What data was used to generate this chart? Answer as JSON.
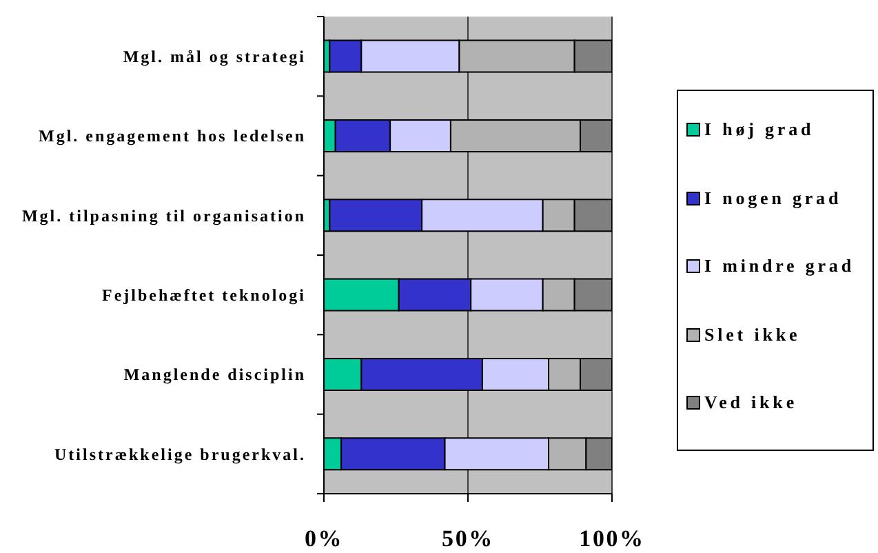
{
  "chart_data": {
    "type": "bar",
    "orientation": "horizontal",
    "stacked": true,
    "categories": [
      "Mgl. mål og strategi",
      "Mgl. engagement hos ledelsen",
      "Mgl. tilpasning til organisation",
      "Fejlbehæftet teknologi",
      "Manglende disciplin",
      "Utilstrækkelige brugerkval."
    ],
    "series": [
      {
        "name": "I høj grad",
        "color": "#00cc99",
        "values": [
          2,
          4,
          2,
          26,
          13,
          6
        ]
      },
      {
        "name": "I nogen grad",
        "color": "#3333cc",
        "values": [
          11,
          19,
          32,
          25,
          42,
          36
        ]
      },
      {
        "name": "I mindre grad",
        "color": "#ccccff",
        "values": [
          34,
          21,
          42,
          25,
          23,
          36
        ]
      },
      {
        "name": "Slet ikke",
        "color": "#b2b2b2",
        "values": [
          40,
          45,
          11,
          11,
          11,
          13
        ]
      },
      {
        "name": "Ved ikke",
        "color": "#808080",
        "values": [
          13,
          11,
          13,
          13,
          11,
          9
        ]
      }
    ],
    "xlim": [
      0,
      100
    ],
    "xticks": [
      {
        "value": 0,
        "label": "0%"
      },
      {
        "value": 50,
        "label": "50%"
      },
      {
        "value": 100,
        "label": "100%"
      }
    ],
    "grid": "x",
    "legend": "right"
  }
}
